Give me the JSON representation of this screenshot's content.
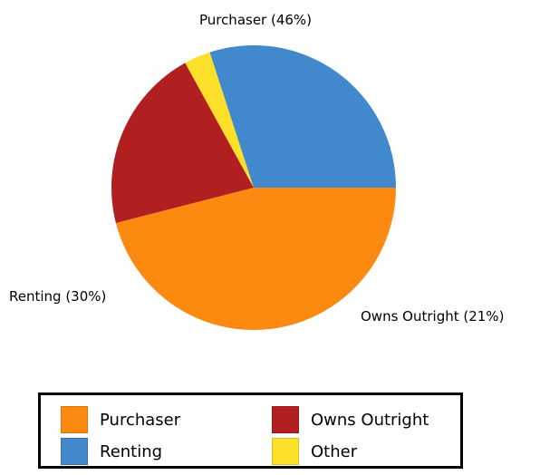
{
  "chart_data": {
    "type": "pie",
    "title": "",
    "slices": [
      {
        "name": "Purchaser",
        "value": 46,
        "label": "Purchaser (46%)",
        "color": "#FC8A10"
      },
      {
        "name": "Owns Outright",
        "value": 21,
        "label": "Owns Outright (21%)",
        "color": "#B21F20"
      },
      {
        "name": "Other",
        "value": 3,
        "label": "",
        "color": "#FDE02A"
      },
      {
        "name": "Renting",
        "value": 30,
        "label": "Renting (30%)",
        "color": "#4288CC"
      }
    ],
    "legend": {
      "placement": "bottom",
      "items": [
        {
          "name": "Purchaser",
          "color": "#FC8A10"
        },
        {
          "name": "Renting",
          "color": "#4288CC"
        },
        {
          "name": "Owns Outright",
          "color": "#B21F20"
        },
        {
          "name": "Other",
          "color": "#FDE02A"
        }
      ]
    }
  }
}
